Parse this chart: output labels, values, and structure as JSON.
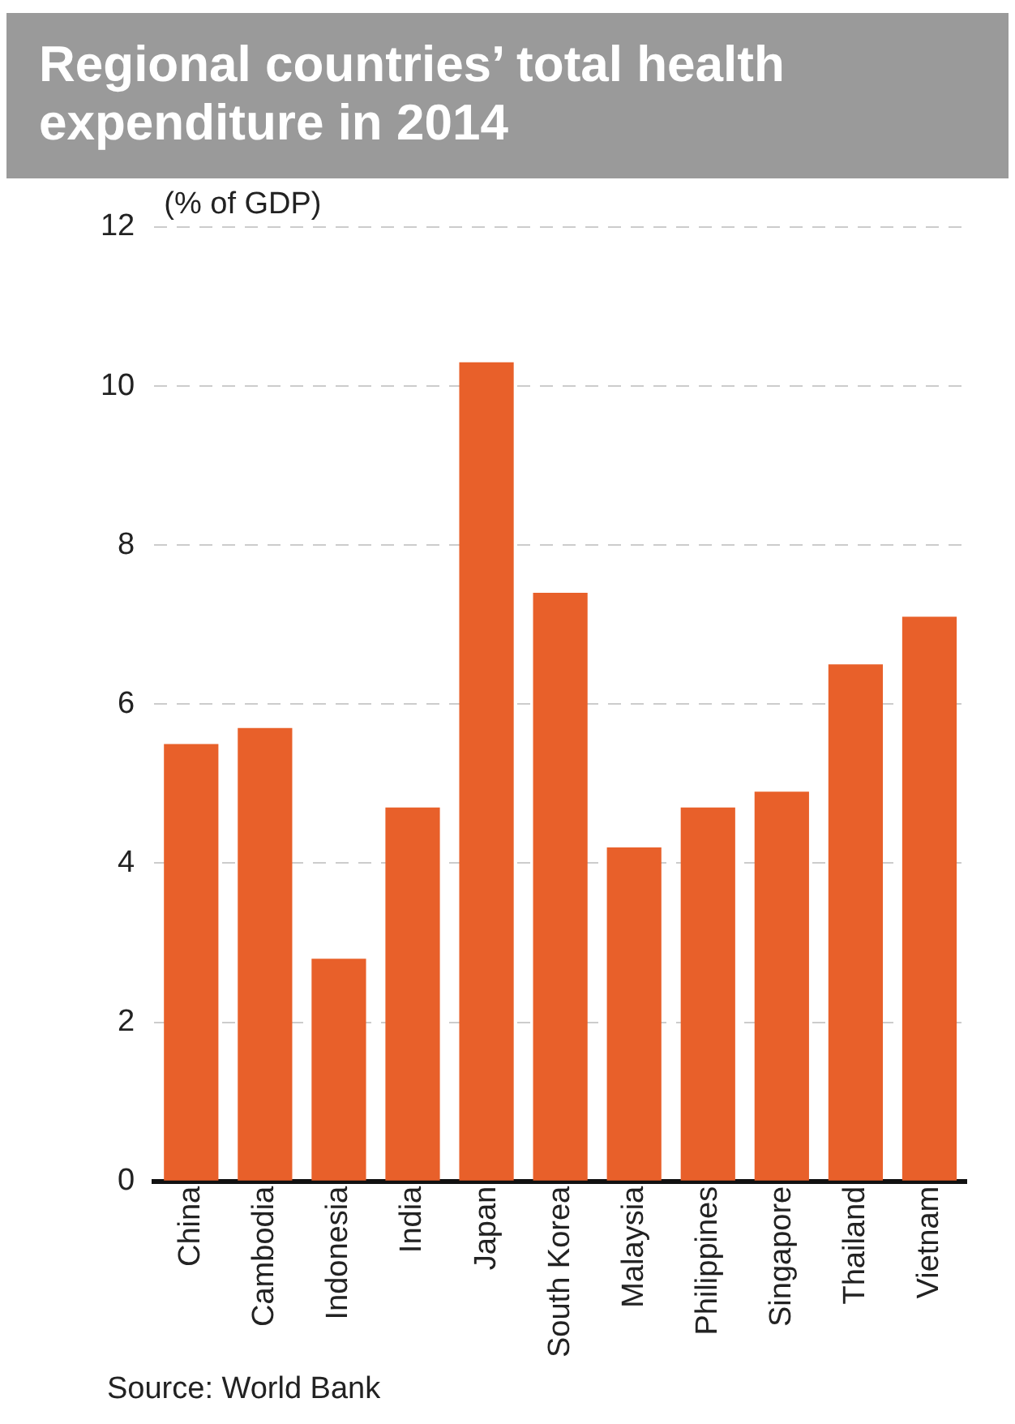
{
  "chart_data": {
    "type": "bar",
    "title": "Regional countries’ total health expenditure in 2014",
    "ylabel": "(% of GDP)",
    "categories": [
      "China",
      "Cambodia",
      "Indonesia",
      "India",
      "Japan",
      "South Korea",
      "Malaysia",
      "Philippines",
      "Singapore",
      "Thailand",
      "Vietnam"
    ],
    "values": [
      5.5,
      5.7,
      2.8,
      4.7,
      10.3,
      7.4,
      4.2,
      4.7,
      4.9,
      6.5,
      7.1
    ],
    "color": "#e8602a",
    "ylim": [
      0,
      12
    ],
    "yticks": [
      0,
      2,
      4,
      6,
      8,
      10,
      12
    ],
    "grid": "y",
    "annotations": [
      "Source: World Bank"
    ]
  }
}
